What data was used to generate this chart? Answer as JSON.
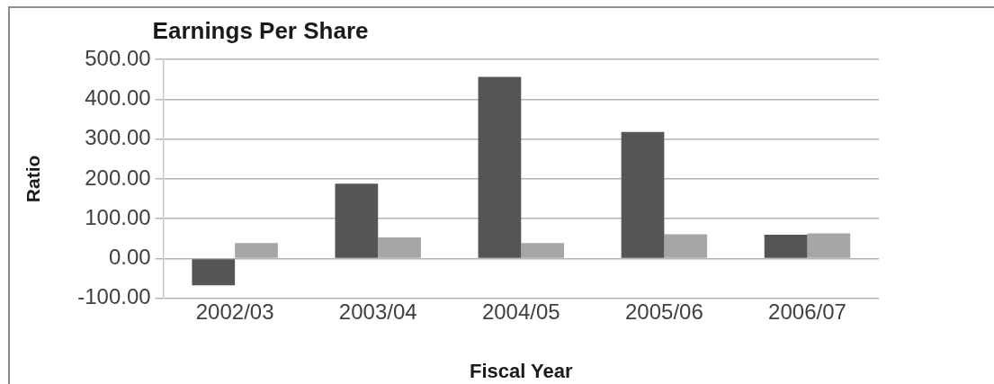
{
  "chart_data": {
    "type": "bar",
    "title": "Earnings Per Share",
    "xlabel": "Fiscal Year",
    "ylabel": "Ratio",
    "categories": [
      "2002/03",
      "2003/04",
      "2004/05",
      "2005/06",
      "2006/07"
    ],
    "series": [
      {
        "color": "#555555",
        "values": [
          -67,
          188,
          456,
          318,
          60
        ]
      },
      {
        "color": "#a6a6a6",
        "values": [
          39,
          53,
          39,
          61,
          63
        ]
      }
    ],
    "ylim": [
      -100,
      500
    ],
    "yticks": [
      {
        "value": -100,
        "label": "-100.00"
      },
      {
        "value": 0,
        "label": "0.00"
      },
      {
        "value": 100,
        "label": "100.00"
      },
      {
        "value": 200,
        "label": "200.00"
      },
      {
        "value": 300,
        "label": "300.00"
      },
      {
        "value": 400,
        "label": "400.00"
      },
      {
        "value": 500,
        "label": "500.00"
      }
    ],
    "grid": "y"
  }
}
